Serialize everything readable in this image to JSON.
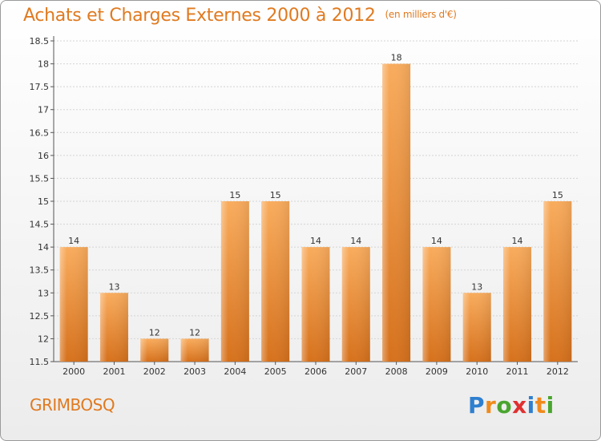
{
  "header": {
    "title": "Achats et Charges Externes 2000 à 2012",
    "unit": "(en milliers d'€)"
  },
  "footer": {
    "commune": "GRIMBOSQ",
    "brand_letters": [
      "P",
      "r",
      "o",
      "x",
      "i",
      "t",
      "i"
    ],
    "brand_colors": [
      "#2f7fd0",
      "#f08a1c",
      "#4aa52e",
      "#e03030",
      "#2f7fd0",
      "#f08a1c",
      "#4aa52e"
    ]
  },
  "colors": {
    "title": "#e07a20",
    "bar_light": "#f7a85a",
    "bar_dark": "#d9741e"
  },
  "chart_data": {
    "type": "bar",
    "categories": [
      "2000",
      "2001",
      "2002",
      "2003",
      "2004",
      "2005",
      "2006",
      "2007",
      "2008",
      "2009",
      "2010",
      "2011",
      "2012"
    ],
    "values": [
      14,
      13,
      12,
      12,
      15,
      15,
      14,
      14,
      18,
      14,
      13,
      14,
      15
    ],
    "ylim": [
      11.5,
      18.5
    ],
    "yticks": [
      "11.5",
      "12",
      "12.5",
      "13",
      "13.5",
      "14",
      "14.5",
      "15",
      "15.5",
      "16",
      "16.5",
      "17",
      "17.5",
      "18",
      "18.5"
    ],
    "grid": true,
    "title": "Achats et Charges Externes 2000 à 2012"
  }
}
